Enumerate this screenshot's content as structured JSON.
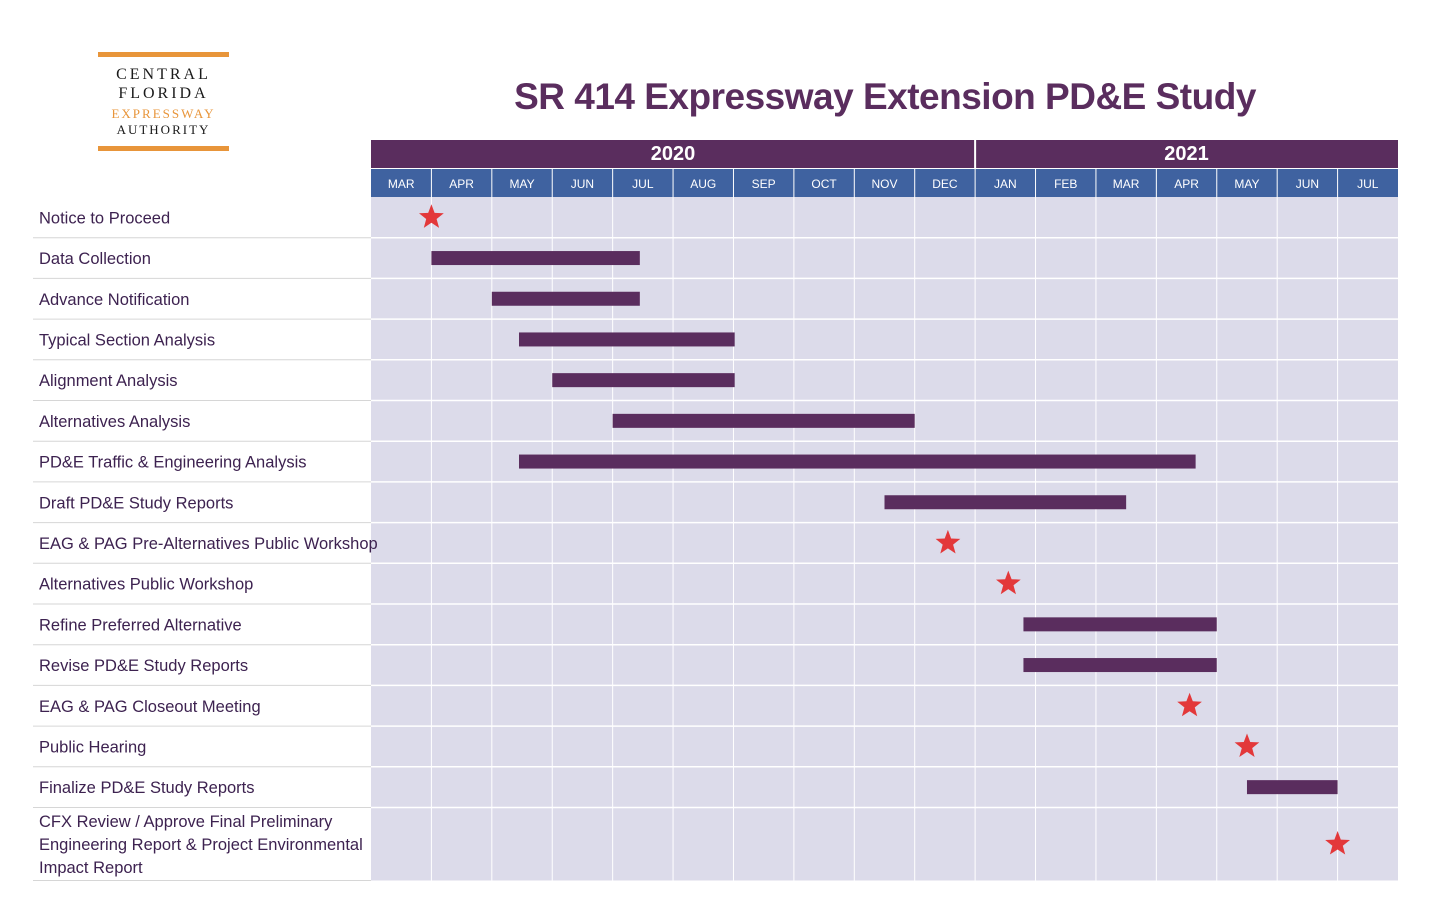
{
  "logo": {
    "line1": "CENTRAL",
    "line2": "FLORIDA",
    "line3": "EXPRESSWAY",
    "line4": "AUTHORITY"
  },
  "colors": {
    "year_header": "#5a2d5e",
    "month_header": "#3f62a0",
    "grid_background": "#dcdbea",
    "bar": "#5a2d5e",
    "milestone": "#e3383a",
    "task_text": "#3d2250",
    "logo_accent": "#e8953a"
  },
  "chart_data": {
    "type": "gantt",
    "title": "SR 414 Expressway Extension PD&E Study",
    "years": [
      {
        "label": "2020",
        "start": 0,
        "end": 10
      },
      {
        "label": "2021",
        "start": 10,
        "end": 17
      }
    ],
    "months": [
      "MAR",
      "APR",
      "MAY",
      "JUN",
      "JUL",
      "AUG",
      "SEP",
      "OCT",
      "NOV",
      "DEC",
      "JAN",
      "FEB",
      "MAR",
      "APR",
      "MAY",
      "JUN",
      "JUL"
    ],
    "time_unit": "months since start of March 2020",
    "tasks": [
      {
        "name": "Notice to Proceed",
        "type": "milestone",
        "at": 1.0
      },
      {
        "name": "Data Collection",
        "type": "bar",
        "start": 1.0,
        "end": 4.45
      },
      {
        "name": "Advance Notification",
        "type": "bar",
        "start": 2.0,
        "end": 4.45
      },
      {
        "name": "Typical Section Analysis",
        "type": "bar",
        "start": 2.45,
        "end": 6.02
      },
      {
        "name": "Alignment Analysis",
        "type": "bar",
        "start": 3.0,
        "end": 6.02
      },
      {
        "name": "Alternatives Analysis",
        "type": "bar",
        "start": 4.0,
        "end": 9.0
      },
      {
        "name": "PD&E Traffic & Engineering Analysis",
        "type": "bar",
        "start": 2.45,
        "end": 13.65
      },
      {
        "name": "Draft PD&E Study Reports",
        "type": "bar",
        "start": 8.5,
        "end": 12.5
      },
      {
        "name": "EAG & PAG Pre-Alternatives Public Workshop",
        "type": "milestone",
        "at": 9.55
      },
      {
        "name": "Alternatives Public Workshop",
        "type": "milestone",
        "at": 10.55
      },
      {
        "name": "Refine Preferred Alternative",
        "type": "bar",
        "start": 10.8,
        "end": 14.0
      },
      {
        "name": "Revise PD&E Study Reports",
        "type": "bar",
        "start": 10.8,
        "end": 14.0
      },
      {
        "name": "EAG & PAG Closeout Meeting",
        "type": "milestone",
        "at": 13.55
      },
      {
        "name": "Public Hearing",
        "type": "milestone",
        "at": 14.5
      },
      {
        "name": "Finalize PD&E Study Reports",
        "type": "bar",
        "start": 14.5,
        "end": 16.0
      },
      {
        "name": "CFX Review / Approve Final Preliminary Engineering Report & Project Environmental Impact Report",
        "type": "milestone",
        "at": 16.0,
        "label_lines": [
          "CFX Review / Approve Final Preliminary",
          "Engineering Report & Project Environmental",
          "Impact Report"
        ]
      }
    ]
  }
}
